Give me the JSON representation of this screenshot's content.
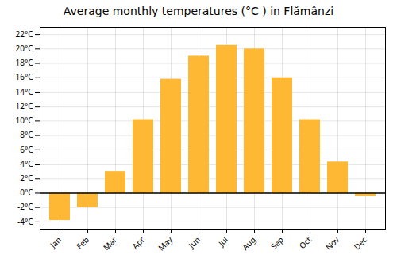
{
  "chart_data": {
    "type": "bar",
    "title": "Average monthly temperatures (°C ) in Flămânzi",
    "categories": [
      "Jan",
      "Feb",
      "Mar",
      "Apr",
      "May",
      "Jun",
      "Jul",
      "Aug",
      "Sep",
      "Oct",
      "Nov",
      "Dec"
    ],
    "values": [
      -3.8,
      -2.0,
      3.0,
      10.2,
      15.8,
      19.0,
      20.5,
      20.0,
      16.0,
      10.2,
      4.3,
      -0.5
    ],
    "color": "#FFB833",
    "ylim": [
      -5,
      23
    ],
    "yticks": [
      {
        "value": -4,
        "label": "-4°C"
      },
      {
        "value": -2,
        "label": "-2°C"
      },
      {
        "value": 0,
        "label": "0°C"
      },
      {
        "value": 2,
        "label": "2°C"
      },
      {
        "value": 4,
        "label": "4°C"
      },
      {
        "value": 6,
        "label": "6°C"
      },
      {
        "value": 8,
        "label": "8°C"
      },
      {
        "value": 10,
        "label": "10°C"
      },
      {
        "value": 12,
        "label": "12°C"
      },
      {
        "value": 14,
        "label": "14°C"
      },
      {
        "value": 16,
        "label": "16°C"
      },
      {
        "value": 18,
        "label": "18°C"
      },
      {
        "value": 20,
        "label": "20°C"
      },
      {
        "value": 22,
        "label": "22°C"
      }
    ],
    "grid": true
  }
}
